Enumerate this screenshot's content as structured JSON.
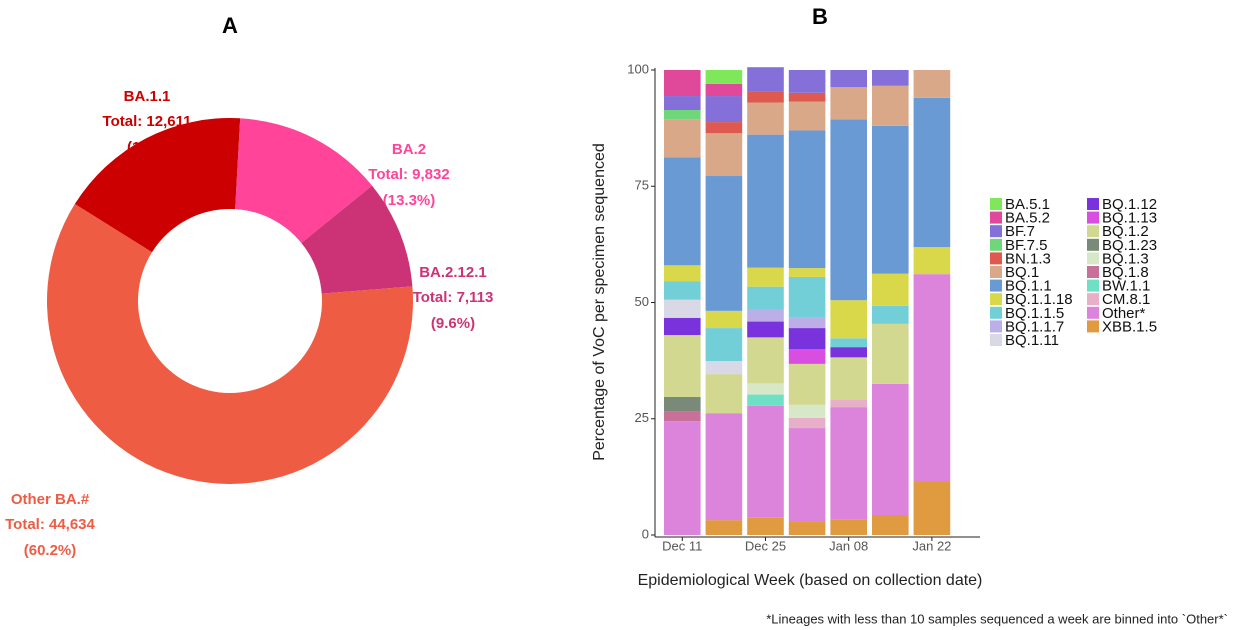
{
  "chart_data": [
    {
      "type": "pie",
      "title": "A",
      "categories": [
        "BA.1.1",
        "BA.2",
        "BA.2.12.1",
        "Other BA.#"
      ],
      "values": [
        12611,
        9832,
        7113,
        44634
      ],
      "value_labels": [
        "Total: 12,611",
        "Total: 9,832",
        "Total: 7,113",
        "Total: 44,634"
      ],
      "percent_labels": [
        "(17%)",
        "(13.3%)",
        "(9.6%)",
        "(60.2%)"
      ],
      "colors": [
        "#cc0000",
        "#ff4499",
        "#cc3377",
        "#ee5c44"
      ]
    },
    {
      "type": "bar",
      "stacked": true,
      "title": "B",
      "x_label": "Epidemiological Week (based on collection date)",
      "y_label": "Percentage of VoC per specimen sequenced",
      "note": "*Lineages with less than 10 samples sequenced a week are binned into `Other*`",
      "categories": [
        "Dec 11",
        null,
        "Dec 25",
        null,
        "Jan 08",
        null,
        "Jan 22"
      ],
      "ylim": [
        0,
        100
      ],
      "yticks": [
        0,
        25,
        50,
        75,
        100
      ],
      "legend": "right",
      "series": [
        {
          "name": "BA.5.1",
          "color": "#7ee85a",
          "values": [
            0,
            3,
            0,
            0,
            0,
            0,
            0
          ]
        },
        {
          "name": "BA.5.2",
          "color": "#e0489a",
          "values": [
            5.6,
            2.6,
            0,
            0,
            0,
            0,
            0
          ]
        },
        {
          "name": "BF.7",
          "color": "#8470d8",
          "values": [
            3,
            5.6,
            5.2,
            4.9,
            3.7,
            3.4,
            0
          ]
        },
        {
          "name": "BF.7.5",
          "color": "#6fd67a",
          "values": [
            2,
            0,
            0,
            0,
            0,
            0,
            0
          ]
        },
        {
          "name": "BN.1.3",
          "color": "#de5a50",
          "values": [
            0,
            2.4,
            2.4,
            1.9,
            0,
            0,
            0
          ]
        },
        {
          "name": "BQ.1",
          "color": "#d9a888",
          "values": [
            8.2,
            9.2,
            6.9,
            6.2,
            6.9,
            8.6,
            6
          ]
        },
        {
          "name": "BQ.1.1",
          "color": "#6a9ad4",
          "values": [
            23.2,
            29,
            28.6,
            29.6,
            38.9,
            31.8,
            32.1
          ]
        },
        {
          "name": "BQ.1.1.18",
          "color": "#d9d84a",
          "values": [
            3.4,
            3.7,
            4.1,
            1.9,
            8.2,
            6.9,
            5.8
          ]
        },
        {
          "name": "BQ.1.1.5",
          "color": "#72cfd8",
          "values": [
            4,
            7.1,
            4.9,
            8.8,
            1.9,
            3.9,
            0
          ]
        },
        {
          "name": "BQ.1.1.7",
          "color": "#bcaee6",
          "values": [
            0,
            0,
            2.6,
            2.2,
            0,
            0,
            0
          ]
        },
        {
          "name": "BQ.1.11",
          "color": "#d8d8e6",
          "values": [
            3.9,
            2.8,
            0,
            0,
            0,
            0,
            0
          ]
        },
        {
          "name": "BQ.1.12",
          "color": "#7a32dc",
          "values": [
            3.7,
            0,
            3.4,
            4.5,
            2.2,
            0,
            0
          ]
        },
        {
          "name": "BQ.1.13",
          "color": "#d84ee0",
          "values": [
            0,
            0,
            0,
            3.2,
            0,
            0,
            0
          ]
        },
        {
          "name": "BQ.1.2",
          "color": "#d2d890",
          "values": [
            13.3,
            8.4,
            9.9,
            8.8,
            9,
            12.9,
            0
          ]
        },
        {
          "name": "BQ.1.23",
          "color": "#7a8a78",
          "values": [
            3.2,
            0,
            0,
            0,
            0,
            0,
            0
          ]
        },
        {
          "name": "BQ.1.3",
          "color": "#d6e8c8",
          "values": [
            0,
            0,
            2.4,
            2.8,
            0,
            0,
            0
          ]
        },
        {
          "name": "BQ.1.8",
          "color": "#c8709a",
          "values": [
            2,
            0,
            0,
            0,
            0,
            0,
            0
          ]
        },
        {
          "name": "BW.1.1",
          "color": "#6ee0c6",
          "values": [
            0,
            0,
            2.4,
            0,
            0,
            0,
            0
          ]
        },
        {
          "name": "CM.8.1",
          "color": "#e8b0c8",
          "values": [
            0,
            0,
            0,
            2.2,
            1.7,
            0,
            0
          ]
        },
        {
          "name": "Other*",
          "color": "#dc84dc",
          "values": [
            24.5,
            23,
            24.1,
            20.2,
            24.1,
            28.2,
            44.7
          ]
        },
        {
          "name": "XBB.1.5",
          "color": "#e09a40",
          "values": [
            0,
            3.2,
            3.7,
            2.8,
            3.4,
            4.3,
            11.4
          ]
        }
      ]
    }
  ]
}
